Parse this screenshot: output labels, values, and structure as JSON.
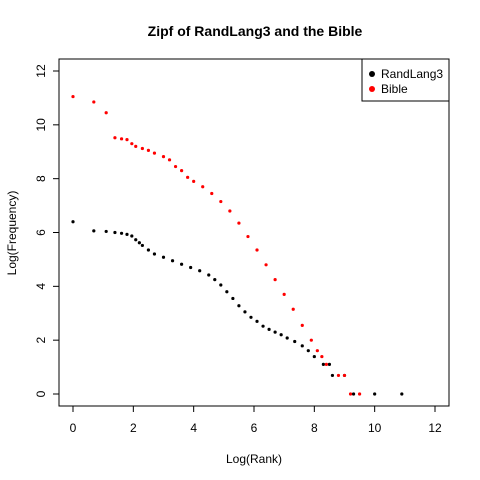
{
  "chart_data": {
    "type": "scatter",
    "title": "Zipf of RandLang3 and the Bible",
    "xlabel": "Log(Rank)",
    "ylabel": "Log(Frequency)",
    "xlim": [
      0,
      12
    ],
    "ylim": [
      0,
      12
    ],
    "xticks": [
      "0",
      "2",
      "4",
      "6",
      "8",
      "10",
      "12"
    ],
    "yticks": [
      "0",
      "2",
      "4",
      "6",
      "8",
      "10",
      "12"
    ],
    "grid": false,
    "legend_position": "top-right",
    "series": [
      {
        "name": "RandLang3",
        "color": "#000000",
        "points": [
          [
            0.0,
            6.4
          ],
          [
            0.69,
            6.06
          ],
          [
            1.1,
            6.04
          ],
          [
            1.39,
            6.0
          ],
          [
            1.61,
            5.97
          ],
          [
            1.79,
            5.93
          ],
          [
            1.95,
            5.87
          ],
          [
            2.08,
            5.73
          ],
          [
            2.2,
            5.62
          ],
          [
            2.3,
            5.52
          ],
          [
            2.5,
            5.35
          ],
          [
            2.7,
            5.2
          ],
          [
            3.0,
            5.08
          ],
          [
            3.3,
            4.95
          ],
          [
            3.6,
            4.82
          ],
          [
            3.9,
            4.7
          ],
          [
            4.2,
            4.58
          ],
          [
            4.5,
            4.42
          ],
          [
            4.7,
            4.25
          ],
          [
            4.9,
            4.05
          ],
          [
            5.1,
            3.8
          ],
          [
            5.3,
            3.55
          ],
          [
            5.5,
            3.28
          ],
          [
            5.7,
            3.05
          ],
          [
            5.9,
            2.85
          ],
          [
            6.1,
            2.7
          ],
          [
            6.3,
            2.52
          ],
          [
            6.5,
            2.4
          ],
          [
            6.7,
            2.3
          ],
          [
            6.9,
            2.2
          ],
          [
            7.1,
            2.08
          ],
          [
            7.35,
            1.95
          ],
          [
            7.6,
            1.79
          ],
          [
            7.8,
            1.61
          ],
          [
            8.0,
            1.39
          ],
          [
            8.3,
            1.1
          ],
          [
            8.5,
            1.1
          ],
          [
            8.6,
            0.69
          ],
          [
            9.0,
            0.69
          ],
          [
            9.3,
            0.0
          ],
          [
            10.0,
            0.0
          ],
          [
            10.9,
            0.0
          ]
        ]
      },
      {
        "name": "Bible",
        "color": "#ff0000",
        "points": [
          [
            0.0,
            11.05
          ],
          [
            0.69,
            10.85
          ],
          [
            1.1,
            10.45
          ],
          [
            1.39,
            9.52
          ],
          [
            1.61,
            9.48
          ],
          [
            1.79,
            9.45
          ],
          [
            1.95,
            9.3
          ],
          [
            2.08,
            9.2
          ],
          [
            2.3,
            9.12
          ],
          [
            2.5,
            9.05
          ],
          [
            2.7,
            8.95
          ],
          [
            3.0,
            8.82
          ],
          [
            3.2,
            8.7
          ],
          [
            3.4,
            8.45
          ],
          [
            3.6,
            8.3
          ],
          [
            3.8,
            8.05
          ],
          [
            4.0,
            7.9
          ],
          [
            4.3,
            7.7
          ],
          [
            4.6,
            7.45
          ],
          [
            4.9,
            7.15
          ],
          [
            5.2,
            6.8
          ],
          [
            5.5,
            6.35
          ],
          [
            5.8,
            5.85
          ],
          [
            6.1,
            5.35
          ],
          [
            6.4,
            4.8
          ],
          [
            6.7,
            4.25
          ],
          [
            7.0,
            3.7
          ],
          [
            7.3,
            3.15
          ],
          [
            7.6,
            2.55
          ],
          [
            7.9,
            2.0
          ],
          [
            8.1,
            1.61
          ],
          [
            8.25,
            1.39
          ],
          [
            8.4,
            1.1
          ],
          [
            8.8,
            0.69
          ],
          [
            9.0,
            0.69
          ],
          [
            9.2,
            0.0
          ],
          [
            9.5,
            0.0
          ]
        ]
      }
    ]
  }
}
